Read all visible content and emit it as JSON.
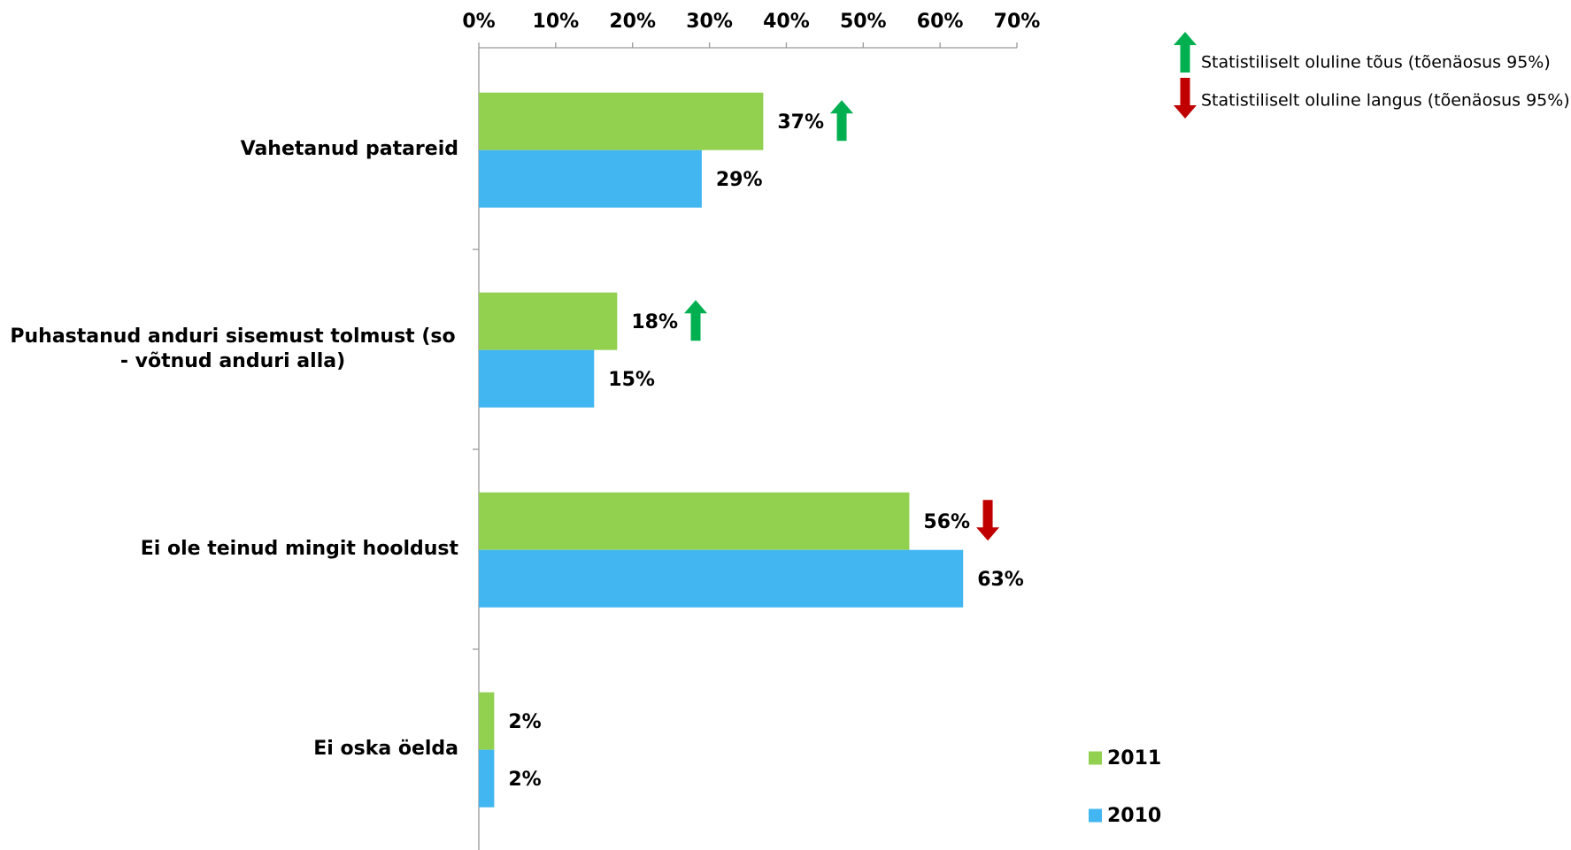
{
  "chart_data": {
    "type": "bar",
    "orientation": "horizontal",
    "categories": [
      "Vahetanud patareid",
      "Puhastanud anduri sisemust tolmust (so - võtnud anduri alla)",
      "Ei ole teinud mingit hooldust",
      "Ei oska öelda"
    ],
    "series": [
      {
        "name": "2011",
        "color": "#92d050",
        "values": [
          37,
          18,
          56,
          2
        ],
        "value_labels": [
          "37%",
          "18%",
          "56%",
          "2%"
        ],
        "significance": [
          "up",
          "up",
          "down",
          null
        ]
      },
      {
        "name": "2010",
        "color": "#41b6f1",
        "values": [
          29,
          15,
          63,
          2
        ],
        "value_labels": [
          "29%",
          "15%",
          "63%",
          "2%"
        ]
      }
    ],
    "xlim": [
      0,
      70
    ],
    "xticks": [
      {
        "value": 0,
        "label": "0%"
      },
      {
        "value": 10,
        "label": "10%"
      },
      {
        "value": 20,
        "label": "20%"
      },
      {
        "value": 30,
        "label": "30%"
      },
      {
        "value": 40,
        "label": "40%"
      },
      {
        "value": 50,
        "label": "50%"
      },
      {
        "value": 60,
        "label": "60%"
      },
      {
        "value": 70,
        "label": "70%"
      }
    ],
    "legend": "bottom-right",
    "significance_legend": {
      "up": {
        "label": "Statistiliselt oluline tõus (tõenäosus 95%)",
        "color": "#00b050"
      },
      "down": {
        "label": "Statistiliselt oluline langus (tõenäosus 95%)",
        "color": "#c00000"
      }
    }
  }
}
